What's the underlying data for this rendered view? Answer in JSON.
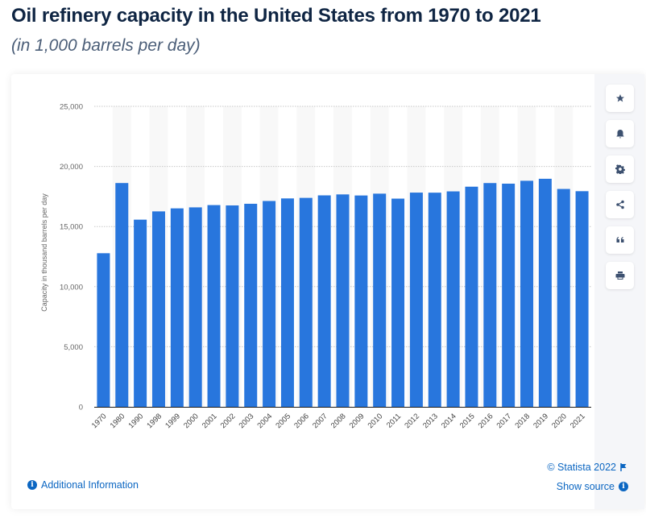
{
  "header": {
    "title": "Oil refinery capacity in the United States from 1970 to 2021",
    "subtitle": "(in 1,000 barrels per day)"
  },
  "toolbar": {
    "buttons": [
      {
        "name": "favorite",
        "icon": "star-icon"
      },
      {
        "name": "notify",
        "icon": "bell-icon"
      },
      {
        "name": "settings",
        "icon": "gear-icon"
      },
      {
        "name": "share",
        "icon": "share-icon"
      },
      {
        "name": "cite",
        "icon": "quote-icon"
      },
      {
        "name": "print",
        "icon": "print-icon"
      }
    ]
  },
  "footer": {
    "additional_info": "Additional Information",
    "copyright": "© Statista 2022",
    "show_source": "Show source"
  },
  "colors": {
    "bar": "#2876dd",
    "title": "#0f2543",
    "link": "#0b66c2"
  },
  "chart_data": {
    "type": "bar",
    "title": "Oil refinery capacity in the United States from 1970 to 2021",
    "subtitle": "(in 1,000 barrels per day)",
    "xlabel": "",
    "ylabel": "Capacity in thousand barrels per day",
    "ylim": [
      0,
      25000
    ],
    "yticks": [
      0,
      5000,
      10000,
      15000,
      20000,
      25000
    ],
    "ytick_labels": [
      "0",
      "5,000",
      "10,000",
      "15,000",
      "20,000",
      "25,000"
    ],
    "grid": true,
    "legend": "none",
    "categories": [
      "1970",
      "1980",
      "1990",
      "1998",
      "1999",
      "2000",
      "2001",
      "2002",
      "2003",
      "2004",
      "2005",
      "2006",
      "2007",
      "2008",
      "2009",
      "2010",
      "2011",
      "2012",
      "2013",
      "2014",
      "2015",
      "2016",
      "2017",
      "2018",
      "2019",
      "2020",
      "2021"
    ],
    "values": [
      12780,
      18620,
      15572,
      16261,
      16512,
      16595,
      16785,
      16757,
      16894,
      17125,
      17339,
      17385,
      17594,
      17672,
      17584,
      17736,
      17322,
      17824,
      17818,
      17925,
      18315,
      18617,
      18567,
      18808,
      18974,
      18127,
      17941
    ]
  }
}
